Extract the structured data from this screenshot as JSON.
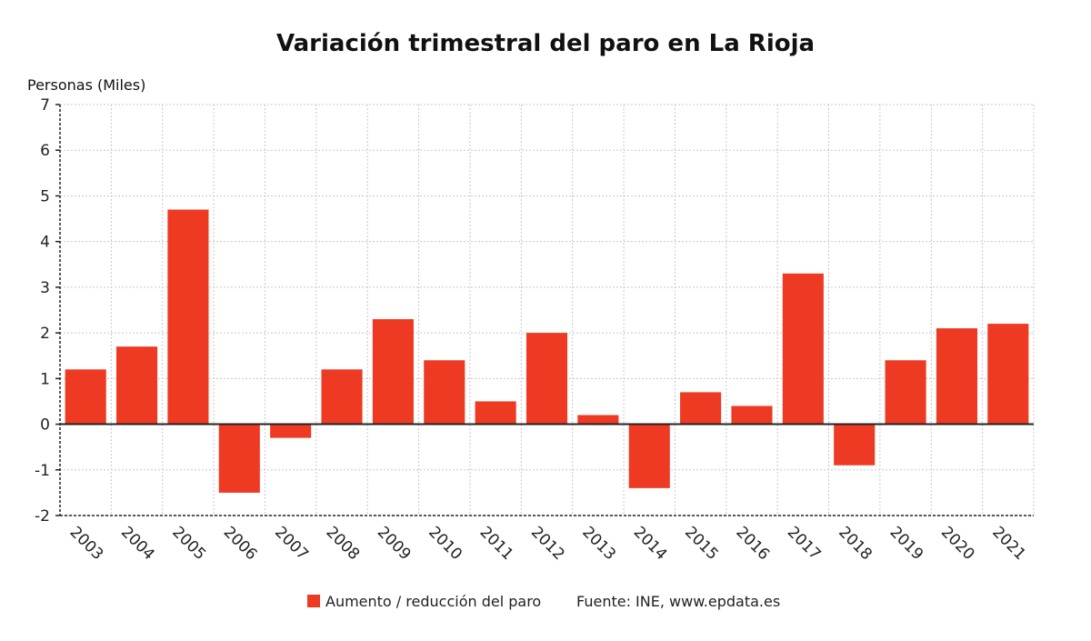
{
  "chart_data": {
    "type": "bar",
    "title": "Variación trimestral del paro en La Rioja",
    "ylabel": "Personas (Miles)",
    "xlabel": "",
    "categories": [
      "2003",
      "2004",
      "2005",
      "2006",
      "2007",
      "2008",
      "2009",
      "2010",
      "2011",
      "2012",
      "2013",
      "2014",
      "2015",
      "2016",
      "2017",
      "2018",
      "2019",
      "2020",
      "2021"
    ],
    "series": [
      {
        "name": "Aumento / reducción del paro",
        "color": "#ee3a23",
        "values": [
          1.2,
          1.7,
          4.7,
          -1.5,
          -0.3,
          1.2,
          2.3,
          1.4,
          0.5,
          2.0,
          0.2,
          -1.4,
          0.7,
          0.4,
          3.3,
          -0.9,
          1.4,
          2.1,
          2.2
        ]
      }
    ],
    "ylim": [
      -2,
      7
    ],
    "yticks": [
      "-2",
      "-1",
      "0",
      "1",
      "2",
      "3",
      "4",
      "5",
      "6",
      "7"
    ],
    "grid": true,
    "legend_position": "bottom",
    "source_prefix": "Fuente: INE, ",
    "source_site": "www.epdata.es"
  }
}
